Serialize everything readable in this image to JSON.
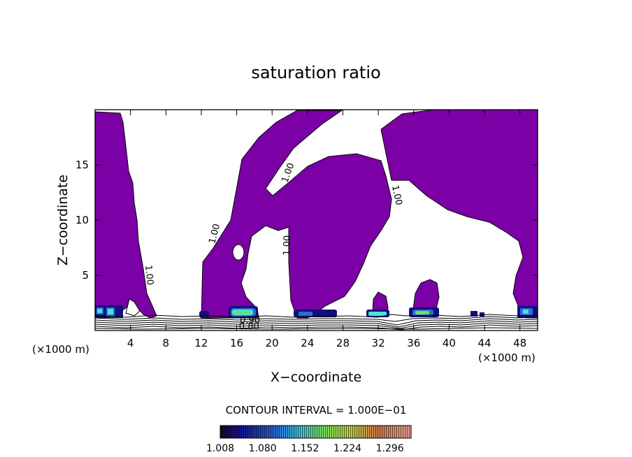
{
  "chart_data": {
    "type": "heatmap",
    "title": "saturation ratio",
    "xlabel": "X−coordinate",
    "ylabel": "Z−coordinate",
    "x_unit_left": "(×1000 m)",
    "x_unit_right": "(×1000 m)",
    "xlim": [
      0,
      50
    ],
    "ylim": [
      0,
      20
    ],
    "xticks": [
      4,
      8,
      12,
      16,
      20,
      24,
      28,
      32,
      36,
      40,
      44,
      48
    ],
    "yticks": [
      5,
      10,
      15
    ],
    "contour_interval_text": "CONTOUR INTERVAL = 1.000E−01",
    "contour_labels": [
      {
        "text": "1.00",
        "x": 5.8,
        "z": 5.0,
        "angle": 85
      },
      {
        "text": "1.00",
        "x": 13.8,
        "z": 8.7,
        "angle": -75
      },
      {
        "text": "1.00",
        "x": 22.1,
        "z": 14.2,
        "angle": -70
      },
      {
        "text": "1.00",
        "x": 22.0,
        "z": 7.7,
        "angle": -88
      },
      {
        "text": "1.00",
        "x": 33.8,
        "z": 12.2,
        "angle": 78
      },
      {
        "text": "0.90",
        "x": 17.5,
        "z": 0.65,
        "angle": 0
      },
      {
        "text": "0.80",
        "x": 17.4,
        "z": 0.08,
        "angle": 0
      }
    ],
    "colorbar": {
      "ticks": [
        "1.008",
        "1.080",
        "1.152",
        "1.224",
        "1.296"
      ],
      "min": 1.008,
      "max": 1.332
    },
    "colors": {
      "region_fill": "#7b00a6",
      "region_edge": "#000000",
      "dark_blue": "#10107a",
      "blue": "#2e6bd8",
      "cyan": "#4fe1d6",
      "green": "#6ee05a"
    }
  }
}
